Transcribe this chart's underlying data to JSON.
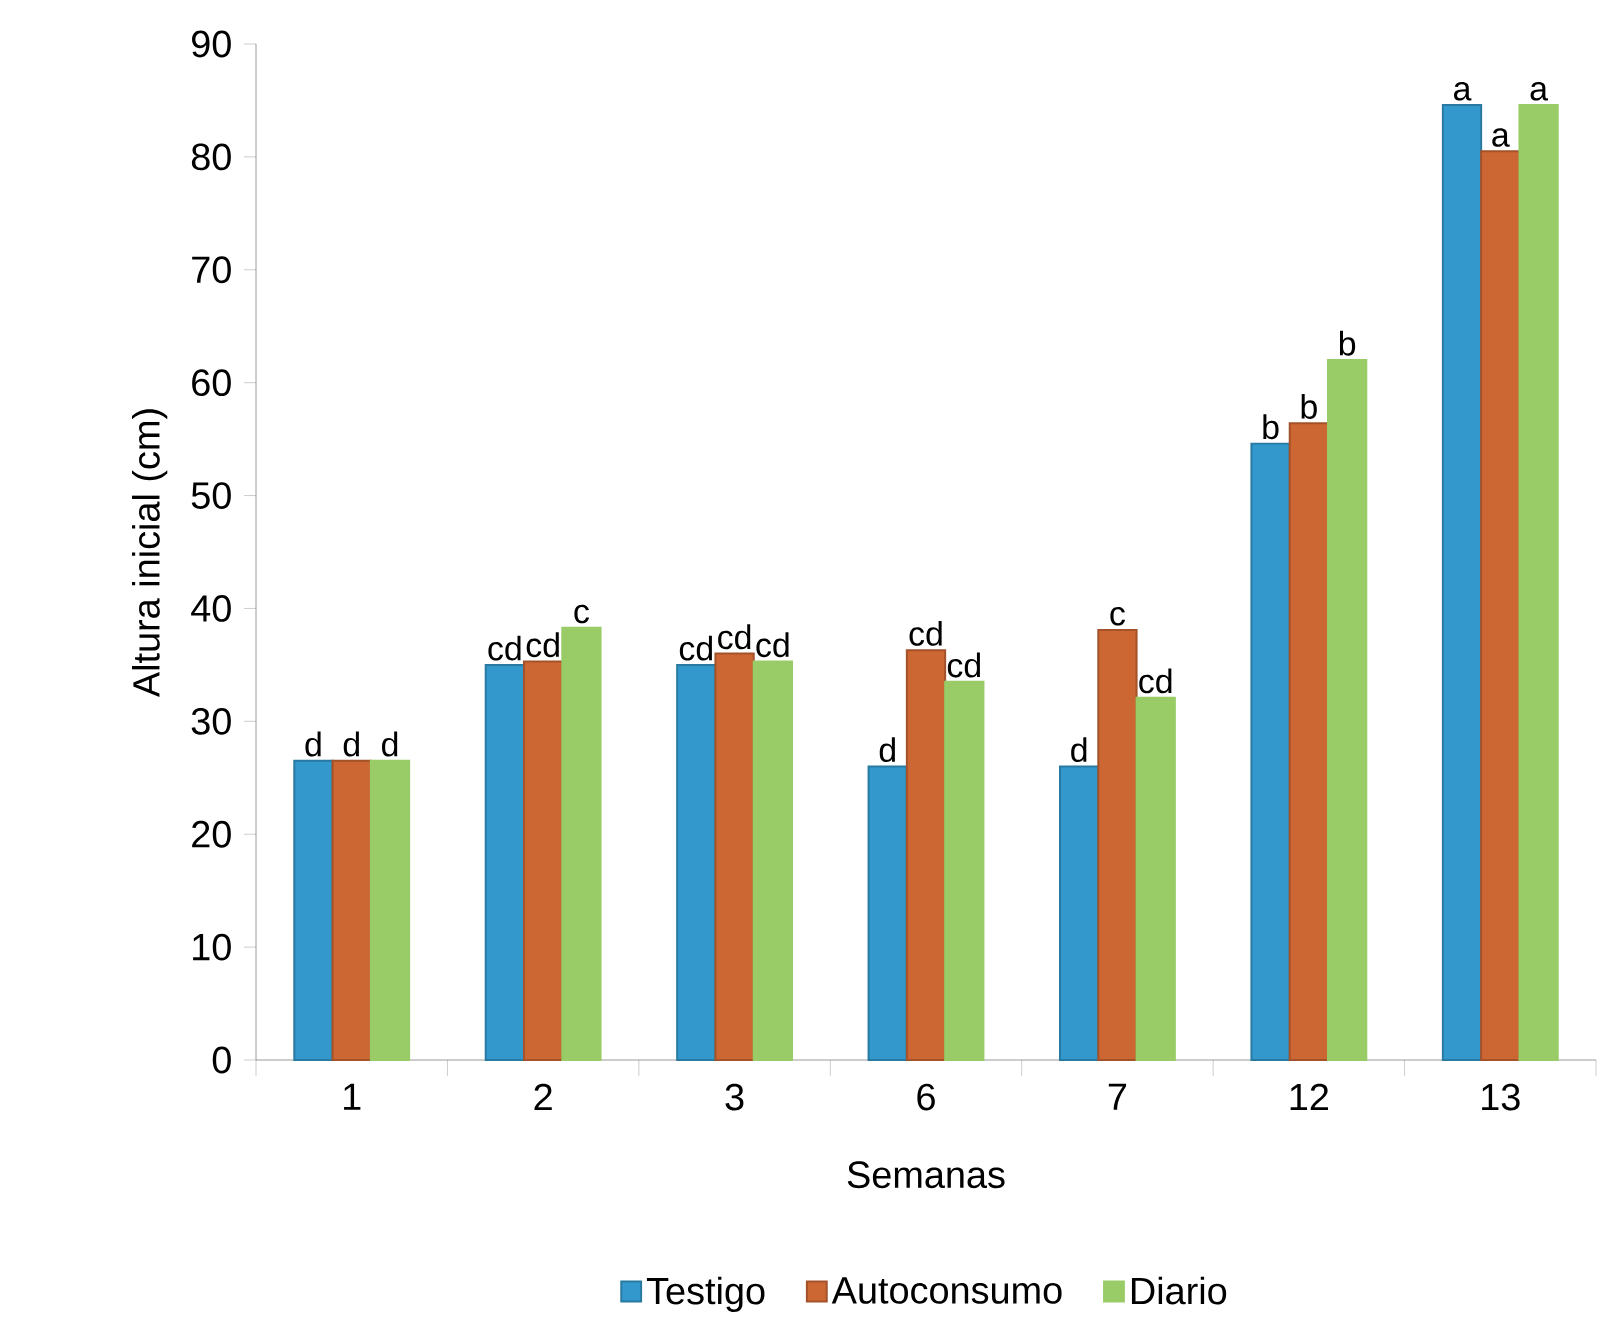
{
  "chart_data": {
    "type": "bar",
    "xlabel": "Semanas",
    "ylabel": "Altura inicial (cm)",
    "categories": [
      "1",
      "2",
      "3",
      "6",
      "7",
      "12",
      "13"
    ],
    "series": [
      {
        "name": "Testigo",
        "color": "#3399cc",
        "values": [
          26.5,
          35,
          35,
          26,
          26,
          54.6,
          84.6
        ],
        "value_labels": [
          "d",
          "cd",
          "cd",
          "d",
          "d",
          "b",
          "a"
        ]
      },
      {
        "name": "Autoconsumo",
        "color": "#cc6633",
        "values": [
          26.5,
          35.3,
          36,
          36.3,
          38.1,
          56.4,
          80.5
        ],
        "value_labels": [
          "d",
          "cd",
          "cd",
          "cd",
          "c",
          "b",
          "a"
        ]
      },
      {
        "name": "Diario",
        "color": "#99cc66",
        "values": [
          26.5,
          38.3,
          35.3,
          33.5,
          32.1,
          62,
          84.6
        ],
        "value_labels": [
          "d",
          "c",
          "cd",
          "cd",
          "cd",
          "b",
          "a"
        ]
      }
    ],
    "ylim": [
      0,
      90
    ],
    "yticks": [
      0,
      10,
      20,
      30,
      40,
      50,
      60,
      70,
      80,
      90
    ],
    "legend": "bottom"
  }
}
